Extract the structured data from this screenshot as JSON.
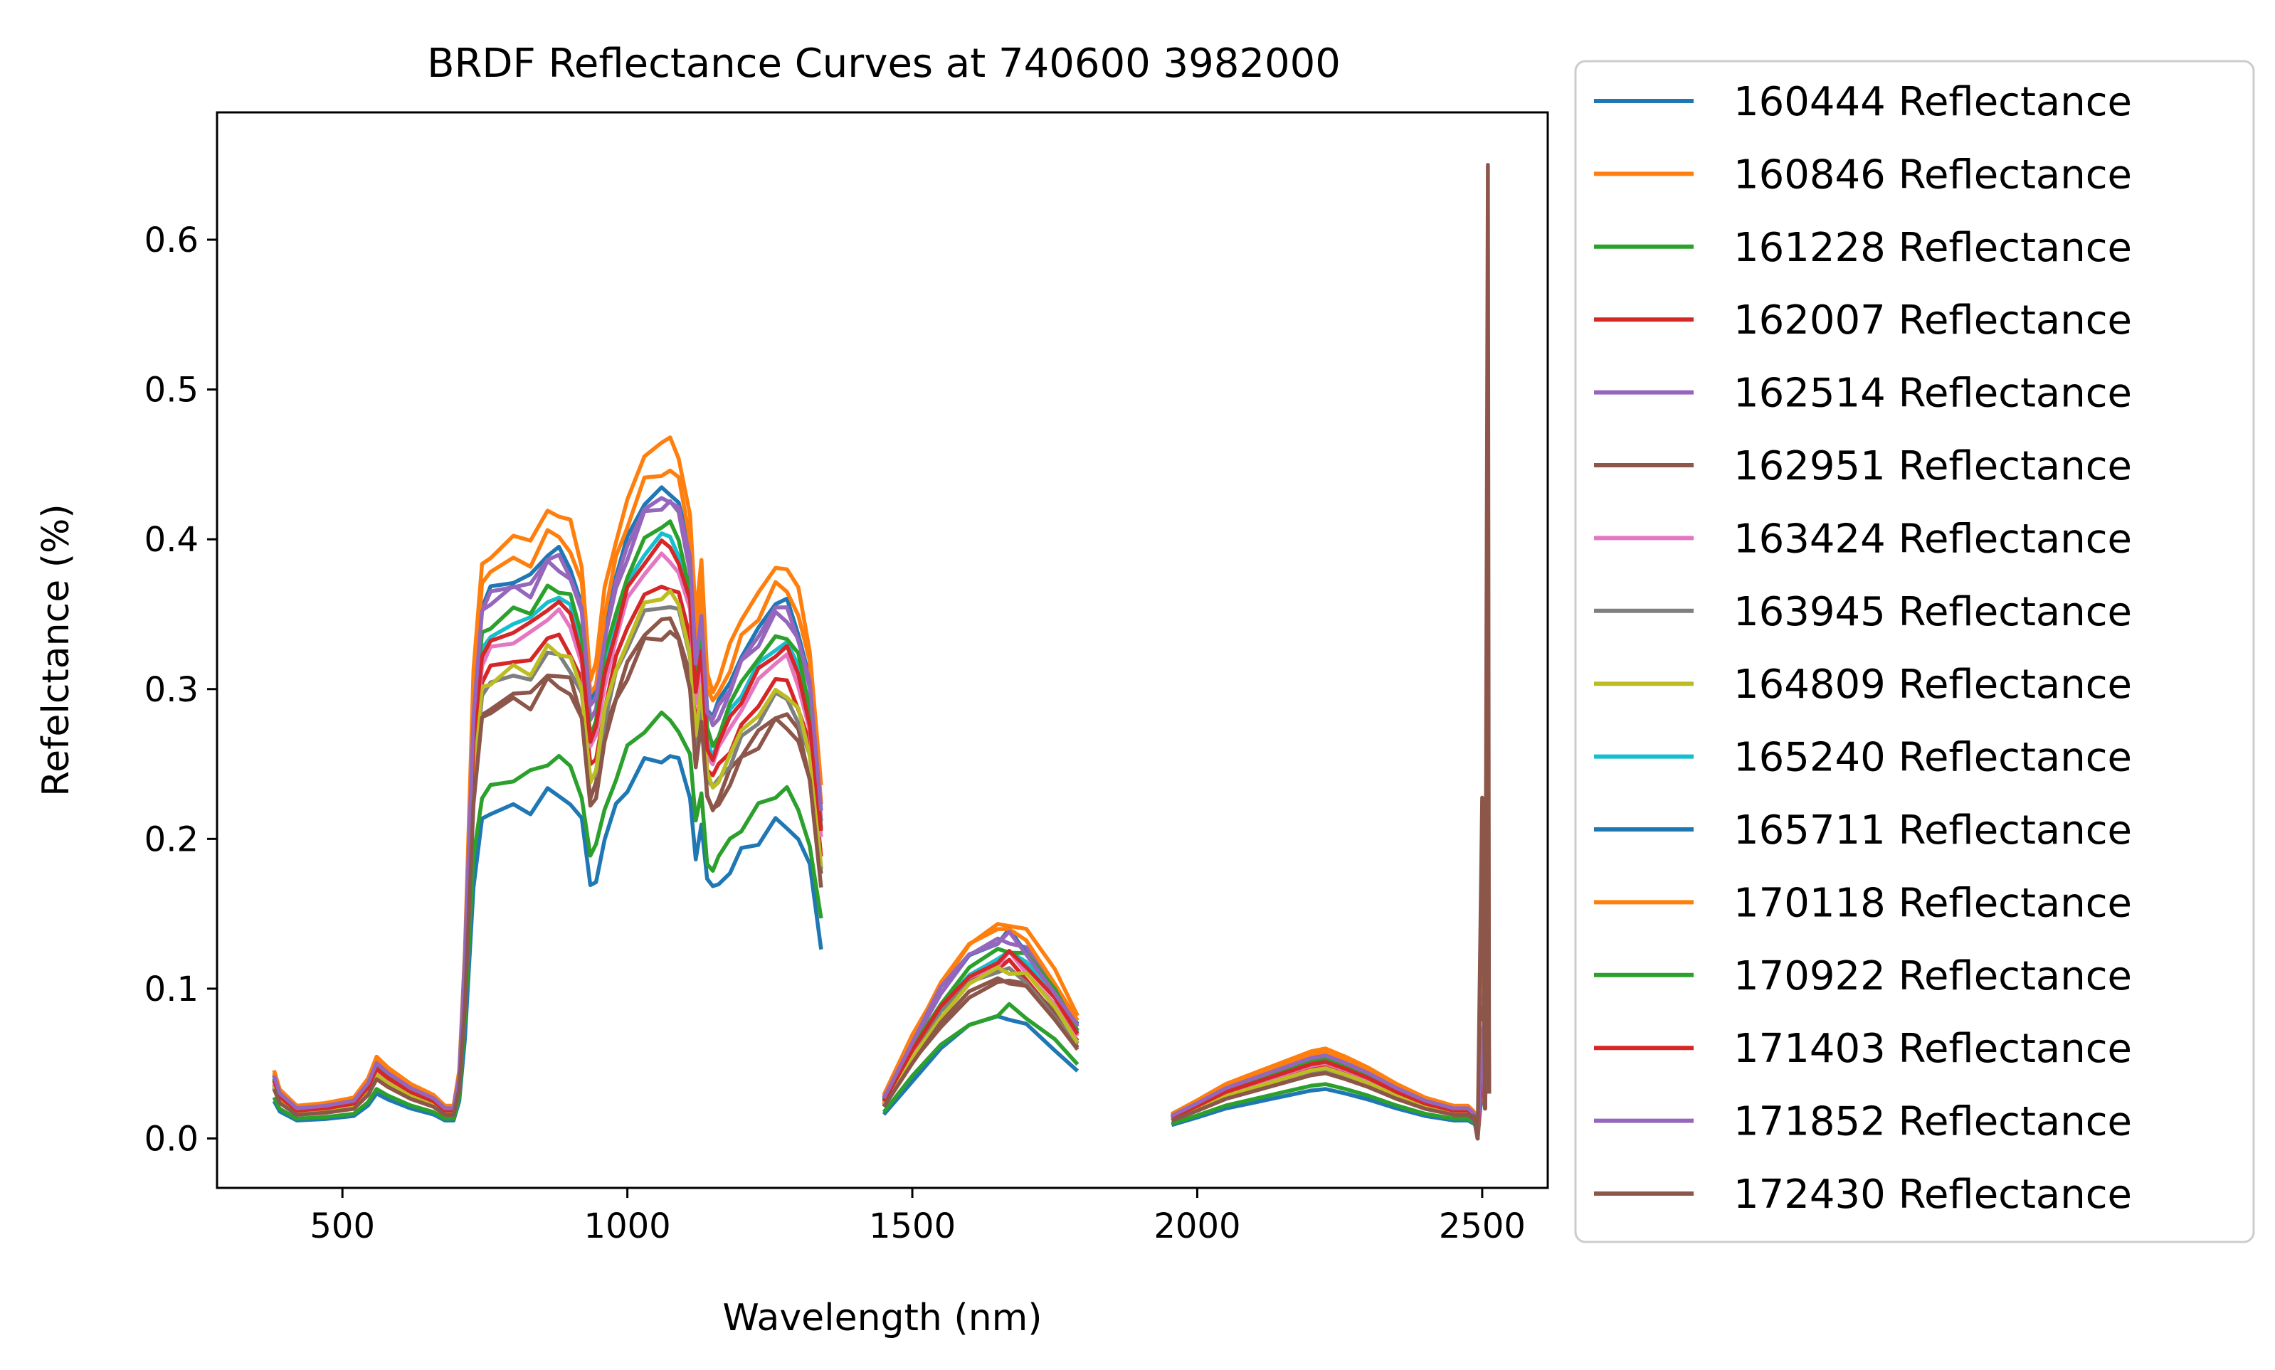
{
  "chart_data": {
    "type": "line",
    "title": "BRDF Reflectance Curves at 740600 3982000",
    "xlabel": "Wavelength (nm)",
    "ylabel": "Refelctance (%)",
    "xlim": [
      280,
      2615
    ],
    "ylim": [
      -0.033,
      0.685
    ],
    "xticks": [
      500,
      1000,
      1500,
      2000,
      2500
    ],
    "yticks": [
      0.0,
      0.1,
      0.2,
      0.3,
      0.4,
      0.5,
      0.6
    ],
    "xtick_labels": [
      "500",
      "1000",
      "1500",
      "2000",
      "2500"
    ],
    "ytick_labels": [
      "0.0",
      "0.1",
      "0.2",
      "0.3",
      "0.4",
      "0.5",
      "0.6"
    ],
    "grid": false,
    "legend_position": "outside-right",
    "reference_profile": {
      "x": [
        380,
        390,
        420,
        470,
        520,
        545,
        560,
        580,
        620,
        660,
        680,
        695,
        705,
        715,
        730,
        745,
        760,
        800,
        830,
        860,
        880,
        900,
        920,
        935,
        945,
        960,
        980,
        1000,
        1030,
        1060,
        1075,
        1090,
        1110,
        1120,
        1130,
        1140,
        1150,
        1160,
        1180,
        1200,
        1230,
        1260,
        1280,
        1300,
        1320,
        1340,
        null,
        1450,
        1500,
        1550,
        1600,
        1650,
        1670,
        1700,
        1750,
        1790,
        null,
        1955,
        2000,
        2050,
        2100,
        2150,
        2200,
        2225,
        2260,
        2300,
        2350,
        2400,
        2450,
        2475,
        2485,
        2490
      ],
      "y": [
        0.025,
        0.018,
        0.012,
        0.013,
        0.015,
        0.022,
        0.03,
        0.026,
        0.02,
        0.016,
        0.012,
        0.012,
        0.025,
        0.07,
        0.17,
        0.21,
        0.215,
        0.22,
        0.22,
        0.23,
        0.23,
        0.225,
        0.21,
        0.17,
        0.175,
        0.2,
        0.22,
        0.235,
        0.25,
        0.255,
        0.255,
        0.25,
        0.23,
        0.19,
        0.21,
        0.17,
        0.165,
        0.17,
        0.18,
        0.19,
        0.2,
        0.21,
        0.21,
        0.2,
        0.18,
        0.13,
        null,
        0.016,
        0.038,
        0.058,
        0.072,
        0.078,
        0.08,
        0.075,
        0.06,
        0.045,
        null,
        0.009,
        0.014,
        0.02,
        0.024,
        0.028,
        0.032,
        0.033,
        0.03,
        0.026,
        0.02,
        0.015,
        0.012,
        0.012,
        0.01,
        0.008
      ]
    },
    "spike": {
      "x": [
        2475,
        2485,
        2492,
        2500,
        2505,
        2510,
        2512
      ],
      "note": ""
    },
    "series": [
      {
        "name": "160444 Reflectance",
        "color": "#1f77b4",
        "scale": 1.0,
        "spike": 0.1
      },
      {
        "name": "160846 Reflectance",
        "color": "#ff7f0e",
        "scale": 1.82,
        "spike": 0.42
      },
      {
        "name": "161228 Reflectance",
        "color": "#2ca02c",
        "scale": 1.1,
        "spike": 0.16
      },
      {
        "name": "162007 Reflectance",
        "color": "#d62728",
        "scale": 1.45,
        "spike": 0.2
      },
      {
        "name": "162514 Reflectance",
        "color": "#9467bd",
        "scale": 1.66,
        "spike": 0.27
      },
      {
        "name": "162951 Reflectance",
        "color": "#8c564b",
        "scale": 1.35,
        "spike": 0.25
      },
      {
        "name": "163424 Reflectance",
        "color": "#e377c2",
        "scale": 1.52,
        "spike": 0.22
      },
      {
        "name": "163945 Reflectance",
        "color": "#7f7f7f",
        "scale": 1.4,
        "spike": 0.18
      },
      {
        "name": "164809 Reflectance",
        "color": "#bcbd22",
        "scale": 1.42,
        "spike": 0.17
      },
      {
        "name": "165240 Reflectance",
        "color": "#17becf",
        "scale": 1.57,
        "spike": 0.19
      },
      {
        "name": "165711 Reflectance",
        "color": "#1f77b4",
        "scale": 1.7,
        "spike": 0.13
      },
      {
        "name": "170118 Reflectance",
        "color": "#ff7f0e",
        "scale": 1.75,
        "spike": 0.12
      },
      {
        "name": "170922 Reflectance",
        "color": "#2ca02c",
        "scale": 1.6,
        "spike": 0.14
      },
      {
        "name": "171403 Reflectance",
        "color": "#d62728",
        "scale": 1.55,
        "spike": 0.15
      },
      {
        "name": "171852 Reflectance",
        "color": "#9467bd",
        "scale": 1.68,
        "spike": 0.21
      },
      {
        "name": "172430 Reflectance",
        "color": "#8c564b",
        "scale": 1.32,
        "spike": 0.65
      }
    ]
  }
}
